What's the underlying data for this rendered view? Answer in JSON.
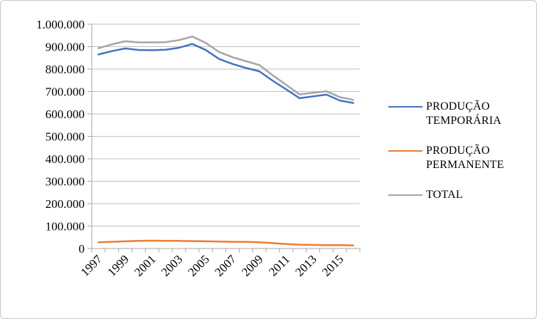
{
  "chart_data": {
    "type": "line",
    "title": "",
    "xlabel": "",
    "ylabel": "",
    "x": [
      1997,
      1998,
      1999,
      2000,
      2001,
      2002,
      2003,
      2004,
      2005,
      2006,
      2007,
      2008,
      2009,
      2010,
      2011,
      2012,
      2013,
      2014,
      2015,
      2016
    ],
    "x_tick_labels": [
      "1997",
      "1999",
      "2001",
      "2003",
      "2005",
      "2007",
      "2009",
      "2011",
      "2013",
      "2015"
    ],
    "x_tick_label_indices": [
      0,
      2,
      4,
      6,
      8,
      10,
      12,
      14,
      16,
      18
    ],
    "y_tick_labels": [
      "0",
      "100.000",
      "200.000",
      "300.000",
      "400.000",
      "500.000",
      "600.000",
      "700.000",
      "800.000",
      "900.000",
      "1.000.000"
    ],
    "y_tick_values": [
      0,
      100000,
      200000,
      300000,
      400000,
      500000,
      600000,
      700000,
      800000,
      900000,
      1000000
    ],
    "ylim": [
      0,
      1000000
    ],
    "grid": true,
    "legend_position": "right",
    "series": [
      {
        "name": "PRODUÇÃO TEMPORÁRIA",
        "color": "#4472C4",
        "values": [
          865000,
          880000,
          892000,
          885000,
          884000,
          886000,
          895000,
          912000,
          885000,
          845000,
          823000,
          805000,
          790000,
          748000,
          710000,
          670000,
          678000,
          686000,
          660000,
          649000
        ]
      },
      {
        "name": "PRODUÇÃO PERMANENTE",
        "color": "#ED7D31",
        "values": [
          28000,
          30000,
          32000,
          34000,
          35000,
          34000,
          34000,
          33000,
          32000,
          31000,
          30000,
          30000,
          28000,
          24000,
          20000,
          17000,
          16000,
          15000,
          15000,
          14000
        ]
      },
      {
        "name": "TOTAL",
        "color": "#A5A5A5",
        "values": [
          893000,
          910000,
          924000,
          919000,
          919000,
          920000,
          929000,
          945000,
          917000,
          876000,
          853000,
          835000,
          818000,
          772000,
          730000,
          687000,
          694000,
          701000,
          675000,
          663000
        ]
      }
    ]
  },
  "style_colors": {
    "gridline": "#BFBFBF",
    "axis": "#A6A6A6",
    "tick": "#A6A6A6",
    "text": "#000000"
  }
}
